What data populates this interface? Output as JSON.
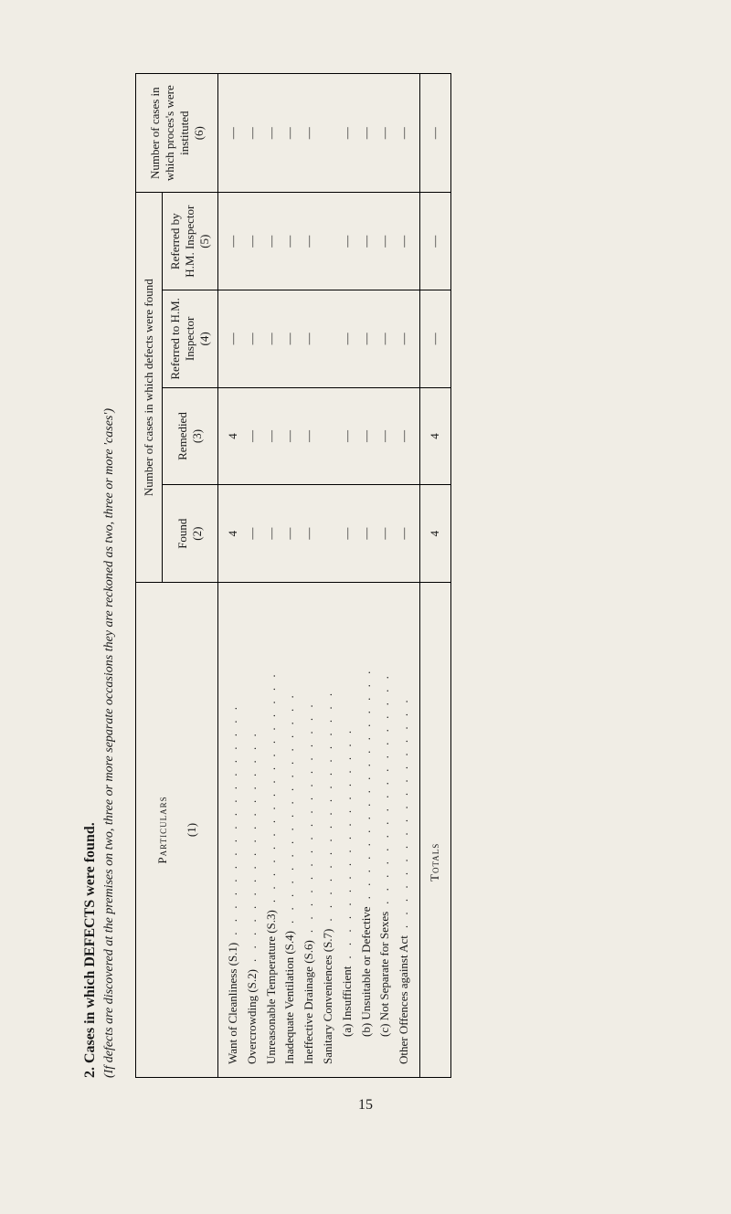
{
  "page": {
    "number": "15"
  },
  "section": {
    "title": "2.  Cases in which DEFECTS were found.",
    "subtitle": "(If defects are discovered at the premises on two, three or more separate occasions they are reckoned as two, three or more 'cases')"
  },
  "table": {
    "header": {
      "particulars": "Particulars",
      "main_group": "Number of cases in which defects were found",
      "col1_num": "(1)",
      "col2_label": "Found",
      "col2_num": "(2)",
      "col3_label": "Remedied",
      "col3_num": "(3)",
      "col4_label": "Referred to H.M. Inspector",
      "col4_num": "(4)",
      "col5_label": "Referred by H.M. Inspector",
      "col5_num": "(5)",
      "col6_label": "Number of cases in which proces's were instituted",
      "col6_num": "(6)"
    },
    "rows": [
      {
        "label": "Want of Cleanliness (S.1)",
        "found": "4",
        "remedied": "4",
        "ref_to": "—",
        "ref_by": "—",
        "instituted": "—"
      },
      {
        "label": "Overcrowding (S.2)",
        "found": "—",
        "remedied": "—",
        "ref_to": "—",
        "ref_by": "—",
        "instituted": "—"
      },
      {
        "label": "Unreasonable Temperature (S.3)",
        "found": "—",
        "remedied": "—",
        "ref_to": "—",
        "ref_by": "—",
        "instituted": "—"
      },
      {
        "label": "Inadequate Ventilation (S.4)",
        "found": "—",
        "remedied": "—",
        "ref_to": "—",
        "ref_by": "—",
        "instituted": "—"
      },
      {
        "label": "Ineffective Drainage (S.6)",
        "found": "—",
        "remedied": "—",
        "ref_to": "—",
        "ref_by": "—",
        "instituted": "—"
      },
      {
        "label": "Sanitary Conveniences (S.7)",
        "found": "",
        "remedied": "",
        "ref_to": "",
        "ref_by": "",
        "instituted": ""
      },
      {
        "label": "(a)  Insufficient",
        "sub": true,
        "found": "—",
        "remedied": "—",
        "ref_to": "—",
        "ref_by": "—",
        "instituted": "—"
      },
      {
        "label": "(b)  Unsuitable or Defective",
        "sub": true,
        "found": "—",
        "remedied": "—",
        "ref_to": "—",
        "ref_by": "—",
        "instituted": "—"
      },
      {
        "label": "(c)  Not Separate for Sexes",
        "sub": true,
        "found": "—",
        "remedied": "—",
        "ref_to": "—",
        "ref_by": "—",
        "instituted": "—"
      },
      {
        "label": "Other Offences against Act",
        "found": "—",
        "remedied": "—",
        "ref_to": "—",
        "ref_by": "—",
        "instituted": "—"
      }
    ],
    "totals": {
      "label": "Totals",
      "found": "4",
      "remedied": "4",
      "ref_to": "—",
      "ref_by": "—",
      "instituted": "—"
    }
  }
}
